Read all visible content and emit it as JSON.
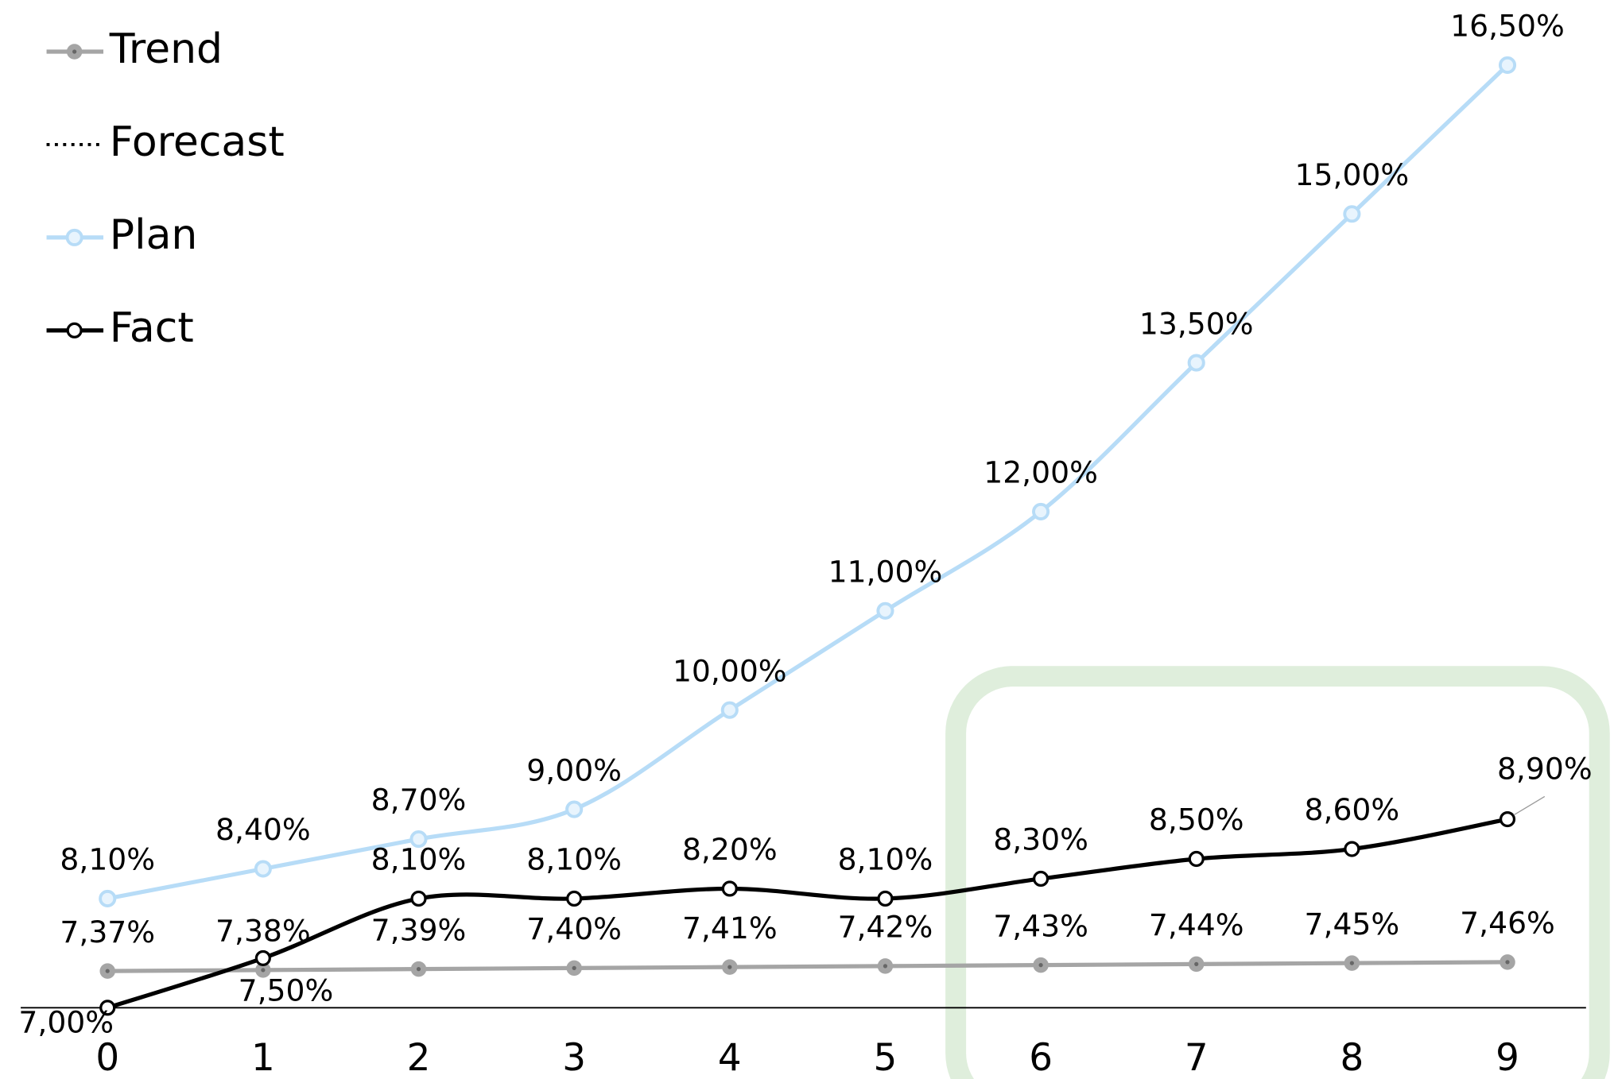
{
  "chart_data": {
    "type": "line",
    "categories": [
      "0",
      "1",
      "2",
      "3",
      "4",
      "5",
      "6",
      "7",
      "8",
      "9"
    ],
    "ylim": [
      7,
      17
    ],
    "legend": "top-left",
    "smooth": true,
    "series": [
      {
        "name": "Trend",
        "color": "#a5a5a5",
        "values": [
          7.37,
          7.38,
          7.39,
          7.4,
          7.41,
          7.42,
          7.43,
          7.44,
          7.45,
          7.46
        ],
        "value_labels": [
          "7,37%",
          "7,38%",
          "7,39%",
          "7,40%",
          "7,41%",
          "7,42%",
          "7,43%",
          "7,44%",
          "7,45%",
          "7,46%"
        ]
      },
      {
        "name": "Forecast",
        "color": "#000000",
        "dash": "dotted",
        "values": [
          null,
          null,
          null,
          null,
          null,
          null,
          null,
          null,
          null,
          null
        ]
      },
      {
        "name": "Plan",
        "color": "#b7dcf7",
        "values": [
          8.1,
          8.4,
          8.7,
          9.0,
          10,
          11,
          12,
          13.5,
          15,
          16.5
        ],
        "value_labels": [
          "8,10%",
          "8,40%",
          "8,70%",
          "9,00%",
          "10,00%",
          "11,00%",
          "12,00%",
          "13,50%",
          "15,00%",
          "16,50%"
        ]
      },
      {
        "name": "Fact",
        "color": "#000000",
        "values": [
          7.0,
          7.5,
          8.1,
          8.1,
          8.2,
          8.1,
          8.3,
          8.5,
          8.6,
          8.9
        ],
        "value_labels": [
          "7,00%",
          "7,50%",
          "8,10%",
          "8,10%",
          "8,20%",
          "8,10%",
          "8,30%",
          "8,50%",
          "8,60%",
          "8,90%"
        ]
      }
    ]
  }
}
